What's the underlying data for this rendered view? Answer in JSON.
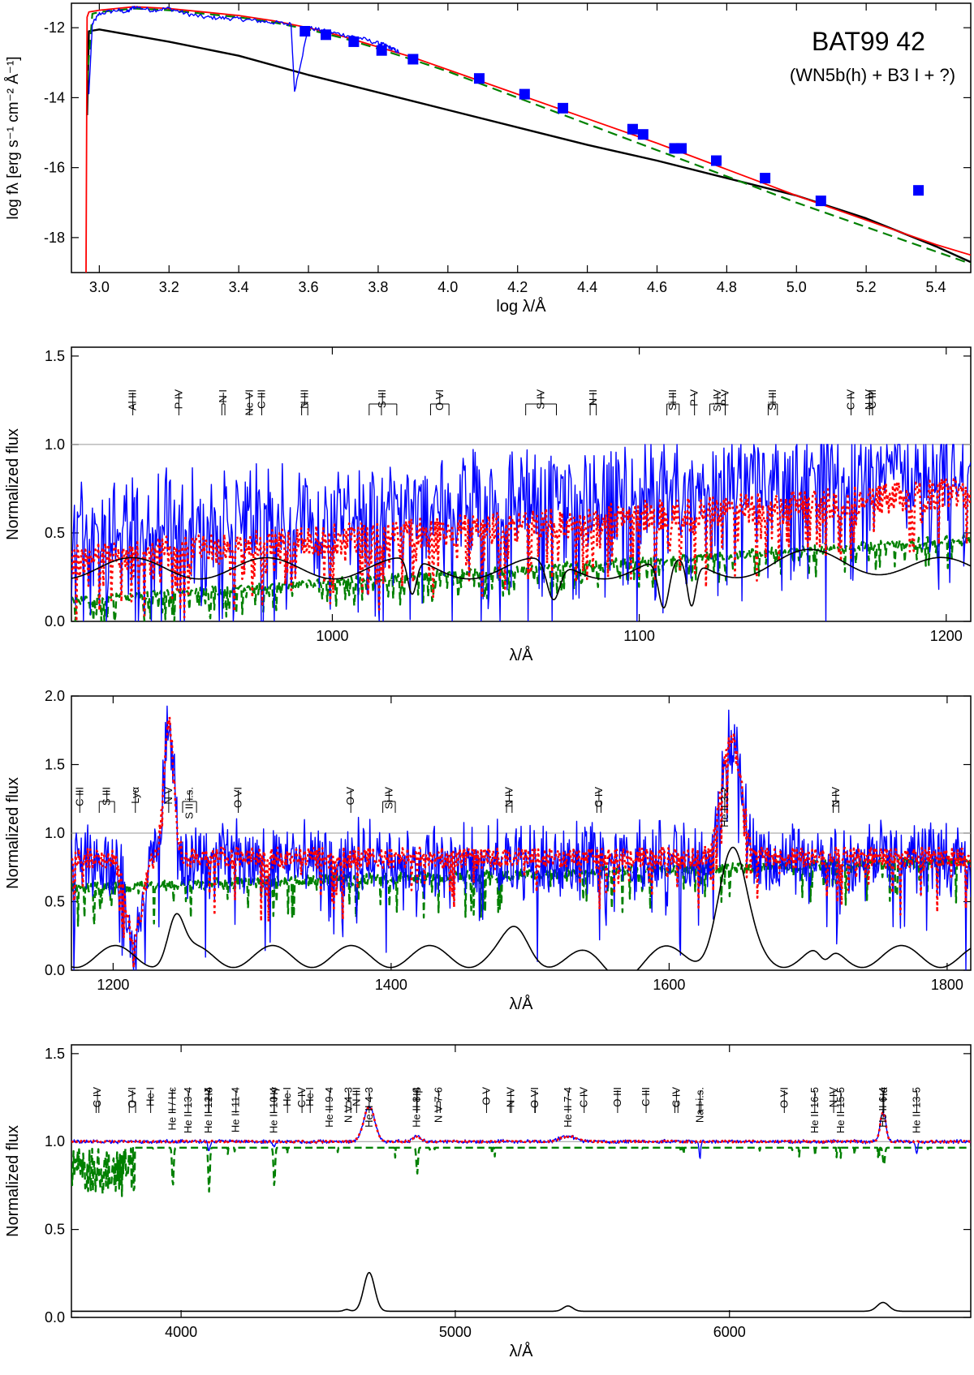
{
  "colors": {
    "observed": "#0000ff",
    "total_model": "#ff0000",
    "companion": "#008000",
    "wr_model": "#000000",
    "photometry": "#0000ff",
    "reference": "#999999"
  },
  "chart_data": [
    {
      "type": "line",
      "title": "BAT99 42",
      "subtitle": "(WN5b(h) + B3 I + ?)",
      "xlabel": "log λ/Å",
      "ylabel": "log fλ [erg s⁻¹ cm⁻² Å⁻¹]",
      "xlim": [
        2.92,
        5.5
      ],
      "ylim": [
        -19.0,
        -11.3
      ],
      "xticks": [
        3.0,
        3.2,
        3.4,
        3.6,
        3.8,
        4.0,
        4.2,
        4.4,
        4.6,
        4.8,
        5.0,
        5.2,
        5.4
      ],
      "yticks": [
        -12,
        -14,
        -16,
        -18
      ],
      "grid": false,
      "series": [
        {
          "role": "observed",
          "style": "solid-thin",
          "x": [
            2.97,
            2.98,
            3.0,
            3.05,
            3.08,
            3.1,
            3.15,
            3.2,
            3.25,
            3.3,
            3.35,
            3.4,
            3.45,
            3.5,
            3.55,
            3.56,
            3.6,
            3.65,
            3.7,
            3.75,
            3.8,
            3.82,
            3.84,
            3.86
          ],
          "y": [
            -13.9,
            -11.9,
            -11.6,
            -11.5,
            -11.55,
            -11.4,
            -11.5,
            -11.45,
            -11.6,
            -11.7,
            -11.72,
            -11.75,
            -11.8,
            -11.85,
            -11.9,
            -13.8,
            -12.0,
            -12.1,
            -12.2,
            -12.3,
            -12.45,
            -12.5,
            -12.6,
            -12.7
          ]
        },
        {
          "role": "total_model",
          "style": "solid",
          "x": [
            2.962,
            2.965,
            2.97,
            3.0,
            3.1,
            3.2,
            3.3,
            3.4,
            3.5,
            3.6,
            3.7,
            3.8,
            3.9,
            4.0,
            4.2,
            4.4,
            4.6,
            4.8,
            5.0,
            5.2,
            5.4,
            5.5
          ],
          "y": [
            -19.0,
            -11.7,
            -11.55,
            -11.5,
            -11.4,
            -11.45,
            -11.55,
            -11.65,
            -11.8,
            -12.0,
            -12.25,
            -12.55,
            -12.85,
            -13.2,
            -13.9,
            -14.6,
            -15.3,
            -16.05,
            -16.8,
            -17.5,
            -18.2,
            -18.5
          ]
        },
        {
          "role": "companion",
          "style": "dashed",
          "x": [
            2.965,
            2.98,
            3.0,
            3.1,
            3.2,
            3.3,
            3.4,
            3.5,
            3.6,
            3.7,
            3.8,
            3.9,
            4.0,
            4.2,
            4.4,
            4.6,
            4.8,
            5.0,
            5.2,
            5.4,
            5.5
          ],
          "y": [
            -13.5,
            -11.6,
            -11.55,
            -11.45,
            -11.5,
            -11.6,
            -11.7,
            -11.85,
            -12.05,
            -12.3,
            -12.6,
            -12.92,
            -13.25,
            -14.0,
            -14.75,
            -15.5,
            -16.25,
            -17.0,
            -17.7,
            -18.4,
            -18.75
          ]
        },
        {
          "role": "wr_model",
          "style": "solid",
          "x": [
            2.965,
            2.97,
            3.0,
            3.2,
            3.4,
            3.6,
            3.8,
            4.0,
            4.2,
            4.4,
            4.6,
            4.8,
            5.0,
            5.2,
            5.4,
            5.5
          ],
          "y": [
            -14.5,
            -12.1,
            -12.05,
            -12.4,
            -12.8,
            -13.35,
            -13.85,
            -14.35,
            -14.85,
            -15.35,
            -15.8,
            -16.3,
            -16.8,
            -17.45,
            -18.25,
            -18.7
          ]
        }
      ],
      "photometry_points": {
        "x": [
          3.59,
          3.65,
          3.73,
          3.81,
          3.9,
          4.09,
          4.22,
          4.33,
          4.53,
          4.56,
          4.65,
          4.67,
          4.77,
          4.91,
          5.07,
          5.35
        ],
        "y": [
          -12.1,
          -12.2,
          -12.4,
          -12.65,
          -12.9,
          -13.45,
          -13.9,
          -14.3,
          -14.9,
          -15.05,
          -15.45,
          -15.45,
          -15.8,
          -16.3,
          -16.95,
          -16.65
        ]
      }
    },
    {
      "type": "line",
      "xlabel": "λ/Å",
      "ylabel": "Normalized flux",
      "xlim": [
        915,
        1208
      ],
      "ylim": [
        0.0,
        1.55
      ],
      "xticks": [
        1000,
        1100,
        1200
      ],
      "yticks": [
        0.0,
        0.5,
        1.0,
        1.5
      ],
      "reference_line": 1.0,
      "line_ids": [
        {
          "label": "Al III",
          "x": [
            935
          ]
        },
        {
          "label": "P IV",
          "x": [
            950
          ]
        },
        {
          "label": "N I",
          "x": [
            964,
            965
          ]
        },
        {
          "label": "Ne VI",
          "x": [
            973
          ]
        },
        {
          "label": "C III",
          "x": [
            977
          ]
        },
        {
          "label": "N III",
          "x": [
            990,
            992
          ]
        },
        {
          "label": "S III",
          "x": [
            1012,
            1016,
            1021
          ]
        },
        {
          "label": "O VI",
          "x": [
            1032,
            1038
          ]
        },
        {
          "label": "S IV",
          "x": [
            1063,
            1073
          ]
        },
        {
          "label": "N II",
          "x": [
            1084,
            1086
          ]
        },
        {
          "label": "Si III",
          "x": [
            1109,
            1113
          ]
        },
        {
          "label": "P V",
          "x": [
            1118
          ]
        },
        {
          "label": "Si IV",
          "x": [
            1123,
            1128
          ]
        },
        {
          "label": "P V",
          "x": [
            1128
          ]
        },
        {
          "label": "Si III",
          "x": [
            1142,
            1145
          ]
        },
        {
          "label": "C IV",
          "x": [
            1169
          ]
        },
        {
          "label": "N IV",
          "x": [
            1175
          ]
        },
        {
          "label": "C III",
          "x": [
            1176
          ]
        }
      ]
    },
    {
      "type": "line",
      "xlabel": "λ/Å",
      "ylabel": "Normalized flux",
      "xlim": [
        1170,
        1817
      ],
      "ylim": [
        0.0,
        2.0
      ],
      "xticks": [
        1200,
        1400,
        1600,
        1800
      ],
      "yticks": [
        0.0,
        0.5,
        1.0,
        1.5,
        2.0
      ],
      "reference_line": 1.0,
      "line_ids": [
        {
          "label": "C III",
          "x": [
            1176
          ]
        },
        {
          "label": "S III",
          "x": [
            1190,
            1201
          ]
        },
        {
          "label": "Lyα",
          "x": [
            1216
          ]
        },
        {
          "label": "N V",
          "x": [
            1240
          ]
        },
        {
          "label": "S II i.s.",
          "x": [
            1250,
            1260
          ]
        },
        {
          "label": "O VI",
          "x": [
            1290
          ]
        },
        {
          "label": "O V",
          "x": [
            1371
          ]
        },
        {
          "label": "Si IV",
          "x": [
            1394,
            1403
          ]
        },
        {
          "label": "N IV",
          "x": [
            1483,
            1487
          ]
        },
        {
          "label": "C IV",
          "x": [
            1548,
            1551
          ]
        },
        {
          "label": "He II 3-2",
          "x": [
            1640
          ]
        },
        {
          "label": "N IV",
          "x": [
            1718,
            1722
          ]
        }
      ]
    },
    {
      "type": "line",
      "xlabel": "λ/Å",
      "ylabel": "Normalized flux",
      "xlim": [
        3600,
        6880
      ],
      "ylim": [
        0.0,
        1.55
      ],
      "xticks": [
        4000,
        5000,
        6000
      ],
      "yticks": [
        0.0,
        0.5,
        1.0,
        1.5
      ],
      "reference_line": 1.0,
      "line_ids": [
        {
          "label": "C IV",
          "x": [
            3690,
            3700
          ]
        },
        {
          "label": "O VI",
          "x": [
            3811,
            3834
          ]
        },
        {
          "label": "He I",
          "x": [
            3889
          ]
        },
        {
          "label": "He II / Hε",
          "x": [
            3968
          ]
        },
        {
          "label": "He II 13-4",
          "x": [
            4026
          ]
        },
        {
          "label": "He II 12-4",
          "x": [
            4100
          ]
        },
        {
          "label": "Hδ",
          "x": [
            4102
          ]
        },
        {
          "label": "He II 11-4",
          "x": [
            4200
          ]
        },
        {
          "label": "He II 10-4",
          "x": [
            4339
          ]
        },
        {
          "label": "Hγ",
          "x": [
            4340
          ]
        },
        {
          "label": "He I",
          "x": [
            4388
          ]
        },
        {
          "label": "C IV",
          "x": [
            4441
          ]
        },
        {
          "label": "He I",
          "x": [
            4471
          ]
        },
        {
          "label": "He II 9-4",
          "x": [
            4542
          ]
        },
        {
          "label": "N V 4-3",
          "x": [
            4603,
            4619
          ]
        },
        {
          "label": "N III",
          "x": [
            4640
          ]
        },
        {
          "label": "He II 4-3",
          "x": [
            4686
          ]
        },
        {
          "label": "He II 8-4",
          "x": [
            4859
          ]
        },
        {
          "label": "Hβ",
          "x": [
            4861
          ]
        },
        {
          "label": "N V 7-6",
          "x": [
            4933,
            4945
          ]
        },
        {
          "label": "O V",
          "x": [
            5114
          ]
        },
        {
          "label": "N IV",
          "x": [
            5200,
            5205
          ]
        },
        {
          "label": "O VI",
          "x": [
            5290,
            5292
          ]
        },
        {
          "label": "He II 7-4",
          "x": [
            5412
          ]
        },
        {
          "label": "C IV",
          "x": [
            5470
          ]
        },
        {
          "label": "O III",
          "x": [
            5592
          ]
        },
        {
          "label": "C III",
          "x": [
            5696
          ]
        },
        {
          "label": "C IV",
          "x": [
            5801,
            5812
          ]
        },
        {
          "label": "Na I i.s.",
          "x": [
            5890,
            5896
          ]
        },
        {
          "label": "O VI",
          "x": [
            6200
          ]
        },
        {
          "label": "He II 16-5",
          "x": [
            6311
          ]
        },
        {
          "label": "N IV",
          "x": [
            6380
          ]
        },
        {
          "label": "He II 15-5",
          "x": [
            6406
          ]
        },
        {
          "label": "He II 6-4",
          "x": [
            6560
          ]
        },
        {
          "label": "Hα",
          "x": [
            6563
          ]
        },
        {
          "label": "He II 13-5",
          "x": [
            6683
          ]
        }
      ]
    }
  ]
}
